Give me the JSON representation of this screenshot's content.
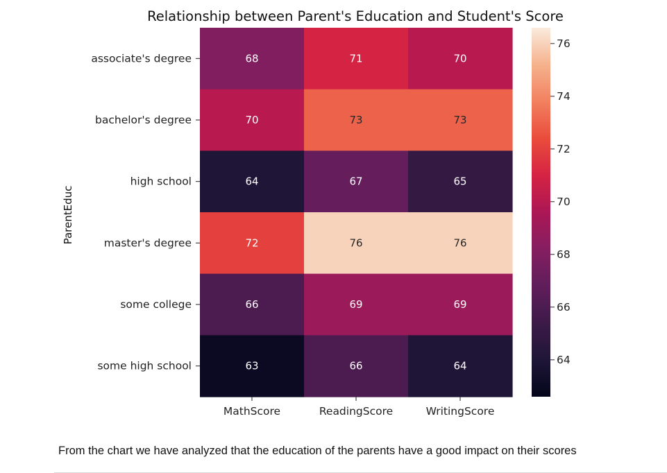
{
  "chart_data": {
    "type": "heatmap",
    "title": "Relationship between Parent's Education and Student's Score",
    "xlabel": "",
    "ylabel": "ParentEduc",
    "x_categories": [
      "MathScore",
      "ReadingScore",
      "WritingScore"
    ],
    "y_categories": [
      "associate's degree",
      "bachelor's degree",
      "high school",
      "master's degree",
      "some college",
      "some high school"
    ],
    "values": [
      [
        68,
        71,
        70
      ],
      [
        70,
        73,
        73
      ],
      [
        64,
        67,
        65
      ],
      [
        72,
        76,
        76
      ],
      [
        66,
        69,
        69
      ],
      [
        63,
        66,
        64
      ]
    ],
    "colorbar": {
      "vmin": 62.6,
      "vmax": 76.6,
      "ticks": [
        64,
        66,
        68,
        70,
        72,
        74,
        76
      ],
      "colormap": "rocket"
    },
    "annotations": true,
    "grid": false
  },
  "caption": "From the chart we have analyzed that the education of the parents have a good impact on their scores"
}
